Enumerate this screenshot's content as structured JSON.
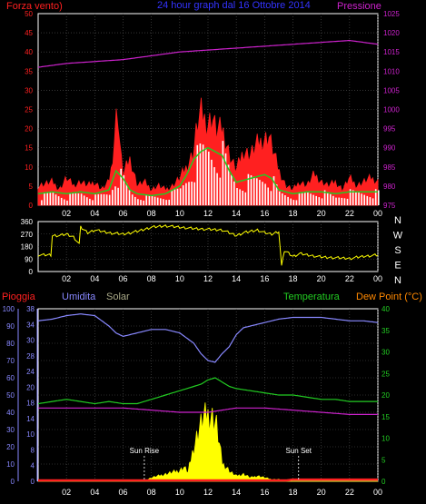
{
  "colors": {
    "background": "#000000",
    "frame": "#ffffff",
    "grid": "#555555",
    "red": "#ff2020",
    "blue_title": "#3333ff",
    "magenta": "#cc22cc",
    "green": "#22cc22",
    "white": "#ffffff",
    "yellow": "#ffff00",
    "lightblue": "#8888ff",
    "orange": "#ff8800",
    "solar_label": "#aaaa88"
  },
  "chart_data": [
    {
      "id": "wind-pressure",
      "type": "line",
      "title": "24 hour graph dal 16 Ottobre 2014",
      "left_axis_label": "Forza vento)",
      "right_axis_label": "Pressione",
      "x_ticks": [
        "02",
        "04",
        "06",
        "08",
        "10",
        "12",
        "14",
        "16",
        "18",
        "20",
        "22",
        "00"
      ],
      "left_ticks": [
        "0",
        "5",
        "10",
        "15",
        "20",
        "25",
        "30",
        "35",
        "40",
        "45",
        "50"
      ],
      "left_ylim": [
        0,
        50
      ],
      "right_ticks": [
        "975",
        "980",
        "985",
        "990",
        "995",
        "1000",
        "1005",
        "1010",
        "1015",
        "1020",
        "1025"
      ],
      "right_ylim": [
        975,
        1025
      ],
      "grid": true,
      "series": [
        {
          "key": "wind_gust",
          "color": "red",
          "style": "filled",
          "x": [
            0,
            1,
            1.5,
            2,
            2.5,
            3,
            3.5,
            4,
            4.5,
            5,
            5.2,
            5.4,
            5.6,
            5.8,
            6,
            6.5,
            7,
            7.5,
            8,
            8.5,
            9,
            9.5,
            10,
            10.5,
            11,
            11.2,
            11.5,
            11.8,
            12,
            12.3,
            12.6,
            13,
            13.3,
            13.6,
            14,
            14.5,
            15,
            15.5,
            16,
            16.3,
            16.6,
            17,
            17.5,
            18,
            18.5,
            19,
            19.5,
            20,
            20.5,
            21,
            21.5,
            22,
            22.5,
            23,
            23.5,
            24
          ],
          "y": [
            5,
            6,
            4,
            7,
            5,
            6,
            5,
            6,
            4,
            6,
            10,
            18,
            26,
            14,
            8,
            12,
            5,
            6,
            4,
            5,
            4,
            5,
            7,
            10,
            14,
            20,
            24,
            22,
            21,
            23,
            19,
            20,
            16,
            12,
            9,
            14,
            13,
            16,
            17,
            18,
            14,
            9,
            5,
            4,
            6,
            5,
            8,
            6,
            5,
            6,
            4,
            7,
            5,
            6,
            7,
            6
          ]
        },
        {
          "key": "wind_avg",
          "color": "green",
          "style": "line",
          "x": [
            0,
            1,
            2,
            3,
            4,
            5,
            5.5,
            6,
            6.5,
            7,
            8,
            9,
            10,
            10.5,
            11,
            11.5,
            12,
            12.5,
            13,
            13.5,
            14,
            15,
            16,
            16.5,
            17,
            18,
            19,
            20,
            21,
            22,
            23,
            24
          ],
          "y": [
            3,
            3.5,
            3,
            3.5,
            3,
            4,
            9,
            7,
            4,
            3,
            2.5,
            3,
            5,
            8,
            12,
            14,
            15,
            14,
            13,
            9,
            6,
            7,
            8,
            7,
            4,
            3,
            3.5,
            3.5,
            3,
            3.5,
            3.5,
            3.5
          ]
        },
        {
          "key": "wind_speed",
          "color": "white",
          "style": "bars",
          "x": [
            0,
            1,
            2,
            3,
            4,
            5,
            5.5,
            6,
            6.5,
            7,
            8,
            9,
            10,
            10.5,
            11,
            11.5,
            12,
            12.5,
            13,
            13.5,
            14,
            15,
            16,
            16.5,
            17,
            18,
            19,
            20,
            21,
            22,
            23,
            24
          ],
          "y": [
            2,
            3,
            2,
            3,
            2,
            3,
            8,
            6,
            3,
            2,
            2,
            2,
            4,
            7,
            10,
            13,
            14,
            12,
            12,
            8,
            5,
            6,
            7,
            6,
            3,
            2,
            3,
            3,
            2,
            3,
            3,
            3
          ]
        },
        {
          "key": "pressure",
          "color": "magenta",
          "style": "line",
          "axis": "right",
          "x": [
            0,
            2,
            4,
            6,
            8,
            10,
            12,
            14,
            16,
            18,
            20,
            22,
            23,
            24
          ],
          "y": [
            1011,
            1012,
            1012.5,
            1013,
            1014,
            1015,
            1015.5,
            1016,
            1016.5,
            1017,
            1017.5,
            1018,
            1017.5,
            1017
          ]
        }
      ]
    },
    {
      "id": "wind-direction",
      "type": "line",
      "x_ticks": [
        "02",
        "04",
        "06",
        "08",
        "10",
        "12",
        "14",
        "16",
        "18",
        "20",
        "22",
        "00"
      ],
      "left_ticks": [
        "0",
        "90",
        "180",
        "270",
        "360"
      ],
      "ylim": [
        0,
        360
      ],
      "right_labels": [
        "N",
        "W",
        "S",
        "E",
        "N"
      ],
      "grid": true,
      "series": [
        {
          "key": "direction",
          "color": "yellow",
          "x": [
            0,
            0.5,
            0.9,
            1,
            1.5,
            2,
            2.5,
            2.9,
            3,
            3.5,
            4,
            5,
            6,
            7,
            8,
            9,
            10,
            11,
            12,
            13,
            14,
            14.5,
            15,
            15.5,
            16,
            16.5,
            17,
            17.2,
            17.4,
            17.6,
            18,
            18.5,
            19,
            20,
            21,
            22,
            23,
            24
          ],
          "y": [
            120,
            120,
            120,
            260,
            260,
            270,
            250,
            200,
            320,
            280,
            300,
            280,
            270,
            290,
            320,
            330,
            320,
            310,
            305,
            300,
            260,
            280,
            290,
            300,
            280,
            270,
            290,
            40,
            150,
            140,
            110,
            130,
            120,
            105,
            100,
            95,
            110,
            120
          ]
        }
      ]
    },
    {
      "id": "humidity-temp",
      "type": "line",
      "title_left": "Pioggia",
      "title_humidity": "Umidita",
      "title_solar": "Solar",
      "title_temp": "Temperatura",
      "title_dew": "Dew Point (°C)",
      "annotations": [
        "Sun Rise",
        "Sun Set"
      ],
      "x_ticks": [
        "02",
        "04",
        "06",
        "08",
        "10",
        "12",
        "14",
        "16",
        "18",
        "20",
        "22",
        "00"
      ],
      "ticks_pioggia": [
        "0",
        "10",
        "20",
        "30",
        "40",
        "50",
        "60",
        "70",
        "80",
        "90",
        "100"
      ],
      "ticks_umidita": [
        "0",
        "4",
        "8",
        "10",
        "14",
        "18",
        "20",
        "24",
        "28",
        "30",
        "34",
        "38"
      ],
      "ylim_temp": [
        0,
        40
      ],
      "ticks_temp": [
        "0",
        "5",
        "10",
        "15",
        "20",
        "25",
        "30",
        "35",
        "40"
      ],
      "grid": true,
      "series": [
        {
          "key": "humidity",
          "color": "lightblue",
          "axis": "pioggia",
          "x": [
            0,
            1,
            2,
            3,
            4,
            5,
            5.5,
            6,
            7,
            8,
            9,
            10,
            11,
            11.5,
            12,
            12.5,
            13,
            13.5,
            14,
            14.5,
            15,
            16,
            17,
            18,
            19,
            20,
            21,
            22,
            23,
            24
          ],
          "y": [
            93,
            94,
            96,
            97,
            96,
            90,
            86,
            84,
            86,
            88,
            88,
            86,
            80,
            74,
            70,
            69,
            74,
            78,
            85,
            89,
            90,
            92,
            94,
            95,
            95,
            95,
            94,
            93,
            93,
            92
          ]
        },
        {
          "key": "temperature",
          "color": "green",
          "axis": "temp",
          "x": [
            0,
            1,
            2,
            3,
            4,
            5,
            6,
            7,
            8,
            9,
            10,
            11,
            11.5,
            12,
            12.5,
            13,
            13.5,
            14,
            15,
            16,
            17,
            18,
            19,
            20,
            21,
            22,
            23,
            24
          ],
          "y": [
            18,
            18.5,
            19,
            18.5,
            18,
            18.5,
            18,
            18,
            19,
            20,
            21,
            22,
            22.5,
            23.5,
            24,
            23,
            22,
            21.5,
            21,
            20.5,
            20,
            20,
            19.5,
            19,
            19,
            18.5,
            18.5,
            18.5
          ]
        },
        {
          "key": "dew_point",
          "color": "magenta",
          "axis": "temp",
          "x": [
            0,
            2,
            4,
            6,
            8,
            10,
            11,
            12,
            13,
            14,
            16,
            18,
            20,
            22,
            24
          ],
          "y": [
            17,
            17,
            17,
            17,
            16.5,
            16,
            16,
            16,
            16.5,
            17,
            17,
            16.5,
            16,
            15.5,
            15.5
          ]
        },
        {
          "key": "solar",
          "color": "yellow",
          "axis": "pioggia",
          "style": "filled",
          "x": [
            0,
            7.5,
            8,
            8.5,
            9,
            9.5,
            10,
            10.3,
            10.6,
            11,
            11.3,
            11.6,
            12,
            12.3,
            12.6,
            13,
            13.3,
            13.6,
            14,
            14.5,
            15,
            15.5,
            16,
            16.5,
            17,
            17.5,
            18,
            24
          ],
          "y": [
            0,
            0,
            2,
            3,
            4,
            5,
            6,
            8,
            5,
            20,
            28,
            35,
            38,
            37,
            32,
            10,
            8,
            5,
            3,
            4,
            2,
            3,
            2,
            1,
            1,
            0,
            0,
            0
          ]
        },
        {
          "key": "rain",
          "color": "red",
          "axis": "pioggia",
          "style": "line",
          "x": [
            0,
            17.5,
            18,
            24
          ],
          "y": [
            0.5,
            0.5,
            1,
            1
          ]
        }
      ]
    }
  ]
}
